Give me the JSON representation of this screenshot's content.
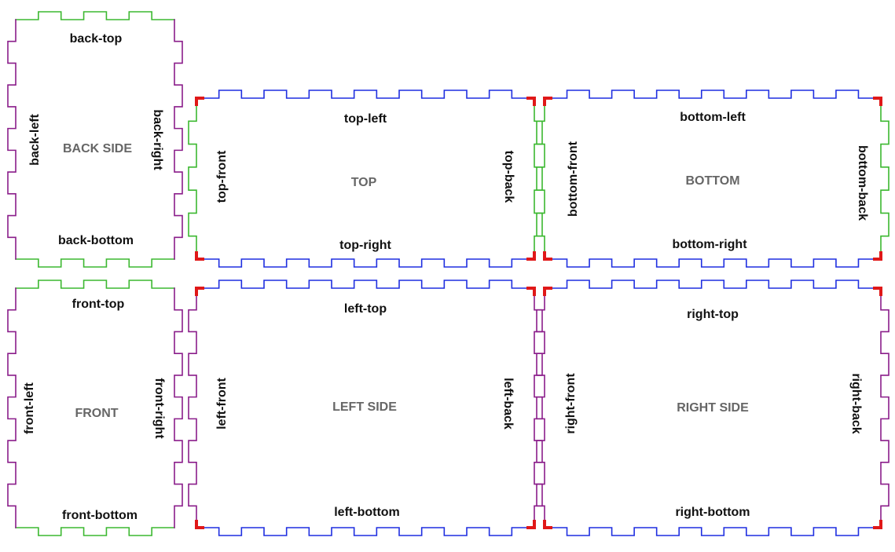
{
  "colors": {
    "background": "#ffffff",
    "green_edge": "#3cb830",
    "purple_edge": "#8a1d8a",
    "blue_edge": "#1f2fe0",
    "red_corner": "#e01818",
    "edge_label": "#111111",
    "panel_label": "#666666"
  },
  "panels": [
    {
      "id": "back",
      "name": "BACK SIDE",
      "edges": {
        "top": {
          "label": "back-top",
          "color": "green",
          "teeth": 3
        },
        "bottom": {
          "label": "back-bottom",
          "color": "green",
          "teeth": 3
        },
        "left": {
          "label": "back-left",
          "color": "purple",
          "teeth": 5
        },
        "right": {
          "label": "back-right",
          "color": "purple",
          "teeth": 5
        }
      },
      "red_corners": false
    },
    {
      "id": "top",
      "name": "TOP",
      "edges": {
        "top": {
          "label": "top-left",
          "color": "blue",
          "teeth": 7
        },
        "bottom": {
          "label": "top-right",
          "color": "blue",
          "teeth": 7
        },
        "left": {
          "label": "top-front",
          "color": "green",
          "teeth": 3
        },
        "right": {
          "label": "top-back",
          "color": "green",
          "teeth": 3
        }
      },
      "red_corners": true
    },
    {
      "id": "bottom",
      "name": "BOTTOM",
      "edges": {
        "top": {
          "label": "bottom-left",
          "color": "blue",
          "teeth": 7
        },
        "bottom": {
          "label": "bottom-right",
          "color": "blue",
          "teeth": 7
        },
        "left": {
          "label": "bottom-front",
          "color": "green",
          "teeth": 3
        },
        "right": {
          "label": "bottom-back",
          "color": "green",
          "teeth": 3
        }
      },
      "red_corners": true
    },
    {
      "id": "front",
      "name": "FRONT",
      "edges": {
        "top": {
          "label": "front-top",
          "color": "green",
          "teeth": 3
        },
        "bottom": {
          "label": "front-bottom",
          "color": "green",
          "teeth": 3
        },
        "left": {
          "label": "front-left",
          "color": "purple",
          "teeth": 5
        },
        "right": {
          "label": "front-right",
          "color": "purple",
          "teeth": 5
        }
      },
      "red_corners": false
    },
    {
      "id": "left",
      "name": "LEFT SIDE",
      "edges": {
        "top": {
          "label": "left-top",
          "color": "blue",
          "teeth": 7
        },
        "bottom": {
          "label": "left-bottom",
          "color": "blue",
          "teeth": 7
        },
        "left": {
          "label": "left-front",
          "color": "purple",
          "teeth": 5
        },
        "right": {
          "label": "left-back",
          "color": "purple",
          "teeth": 5
        }
      },
      "red_corners": true
    },
    {
      "id": "right",
      "name": "RIGHT SIDE",
      "edges": {
        "top": {
          "label": "right-top",
          "color": "blue",
          "teeth": 7
        },
        "bottom": {
          "label": "right-bottom",
          "color": "blue",
          "teeth": 7
        },
        "left": {
          "label": "right-front",
          "color": "purple",
          "teeth": 5
        },
        "right": {
          "label": "right-back",
          "color": "purple",
          "teeth": 5
        }
      },
      "red_corners": true
    }
  ]
}
